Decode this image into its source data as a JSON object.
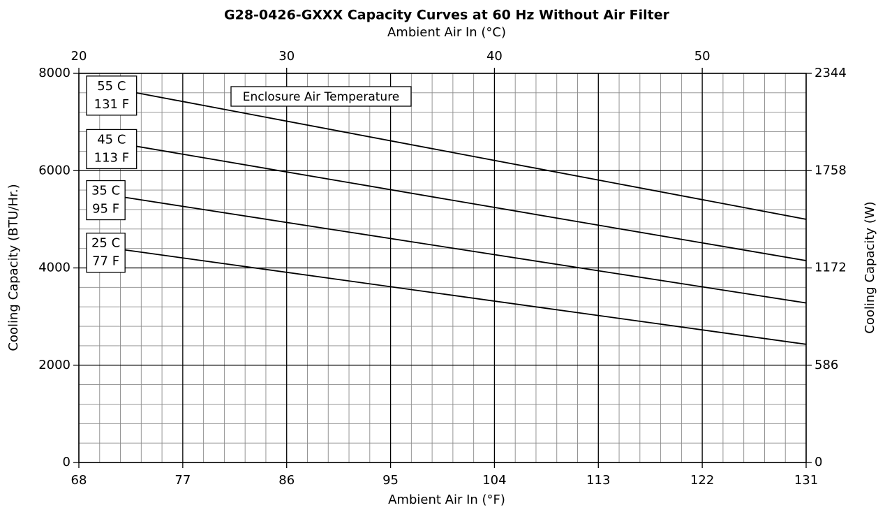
{
  "chart_data": {
    "type": "line",
    "title": "G28-0426-GXXX Capacity Curves at 60 Hz Without Air Filter",
    "x_label": "Ambient Air In (°F)",
    "x2_label": "Ambient Air In (°C)",
    "y_label": "Cooling Capacity (BTU/Hr.)",
    "y2_label": "Cooling Capacity (W)",
    "annotation": "Enclosure Air Temperature",
    "xlim": [
      68,
      131
    ],
    "xticks": [
      68,
      77,
      86,
      95,
      104,
      113,
      122,
      131
    ],
    "x2lim": [
      20,
      55
    ],
    "x2ticks": [
      20,
      30,
      40,
      50
    ],
    "ylim": [
      0,
      8000
    ],
    "yticks": [
      0,
      2000,
      4000,
      6000,
      8000
    ],
    "y2lim": [
      0,
      2344
    ],
    "y2ticks": [
      0,
      586,
      1172,
      1758,
      2344
    ],
    "grid": true,
    "minor_grid_divisions": 5,
    "series": [
      {
        "name": [
          "55 C",
          "131 F"
        ],
        "color": "#000000",
        "x": [
          73,
          131
        ],
        "values": [
          7600,
          5000
        ]
      },
      {
        "name": [
          "45 C",
          "113 F"
        ],
        "color": "#000000",
        "x": [
          73,
          131
        ],
        "values": [
          6500,
          4150
        ]
      },
      {
        "name": [
          "35 C",
          "95 F"
        ],
        "color": "#000000",
        "x": [
          72,
          131
        ],
        "values": [
          5450,
          3280
        ]
      },
      {
        "name": [
          "25 C",
          "77 F"
        ],
        "color": "#000000",
        "x": [
          72,
          131
        ],
        "values": [
          4370,
          2430
        ]
      }
    ]
  }
}
